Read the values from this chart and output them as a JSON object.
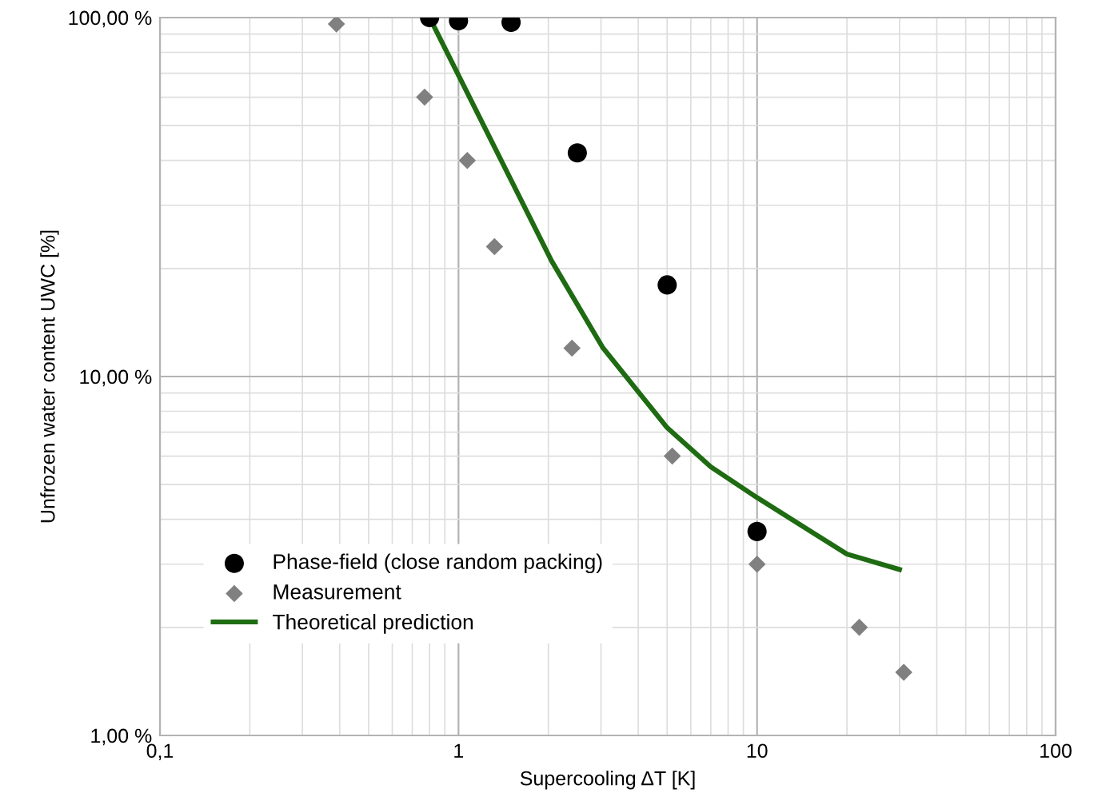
{
  "chart_data": {
    "type": "scatter",
    "xlabel": "Supercooling ΔT [K]",
    "ylabel": "Unfrozen water content UWC [%]",
    "log": "xy",
    "xlim": [
      0.1,
      100
    ],
    "ylim": [
      1,
      100
    ],
    "xticks": [
      {
        "value": 0.1,
        "label": "0,1"
      },
      1,
      10,
      100
    ],
    "yticks": [
      {
        "value": 1,
        "label": "1,00 %"
      },
      {
        "value": 10,
        "label": "10,00 %"
      },
      {
        "value": 100,
        "label": "100,00 %"
      }
    ],
    "grid": true,
    "legend": "bottom left",
    "series": [
      {
        "name": "Phase-field (close random packing)",
        "marker": "circle",
        "color": "#000000",
        "x": [
          0.8,
          1.0,
          1.5,
          2.5,
          5,
          10
        ],
        "values": [
          100,
          98,
          97,
          42,
          18,
          3.7
        ]
      },
      {
        "name": "Measurement",
        "marker": "diamond",
        "color": "#808080",
        "x": [
          0.39,
          0.77,
          1.07,
          1.32,
          2.4,
          5.2,
          10,
          22,
          31
        ],
        "values": [
          96,
          60,
          40,
          23,
          12,
          6,
          3,
          2,
          1.5
        ]
      },
      {
        "name": "Theoretical prediction",
        "type": "line",
        "marker": "none",
        "color": "#1e6b12",
        "x": [
          0.8,
          2.05,
          3.05,
          5,
          7,
          10,
          20,
          30
        ],
        "values": [
          100,
          21,
          12,
          7.2,
          5.6,
          4.6,
          3.2,
          2.9
        ]
      }
    ]
  }
}
